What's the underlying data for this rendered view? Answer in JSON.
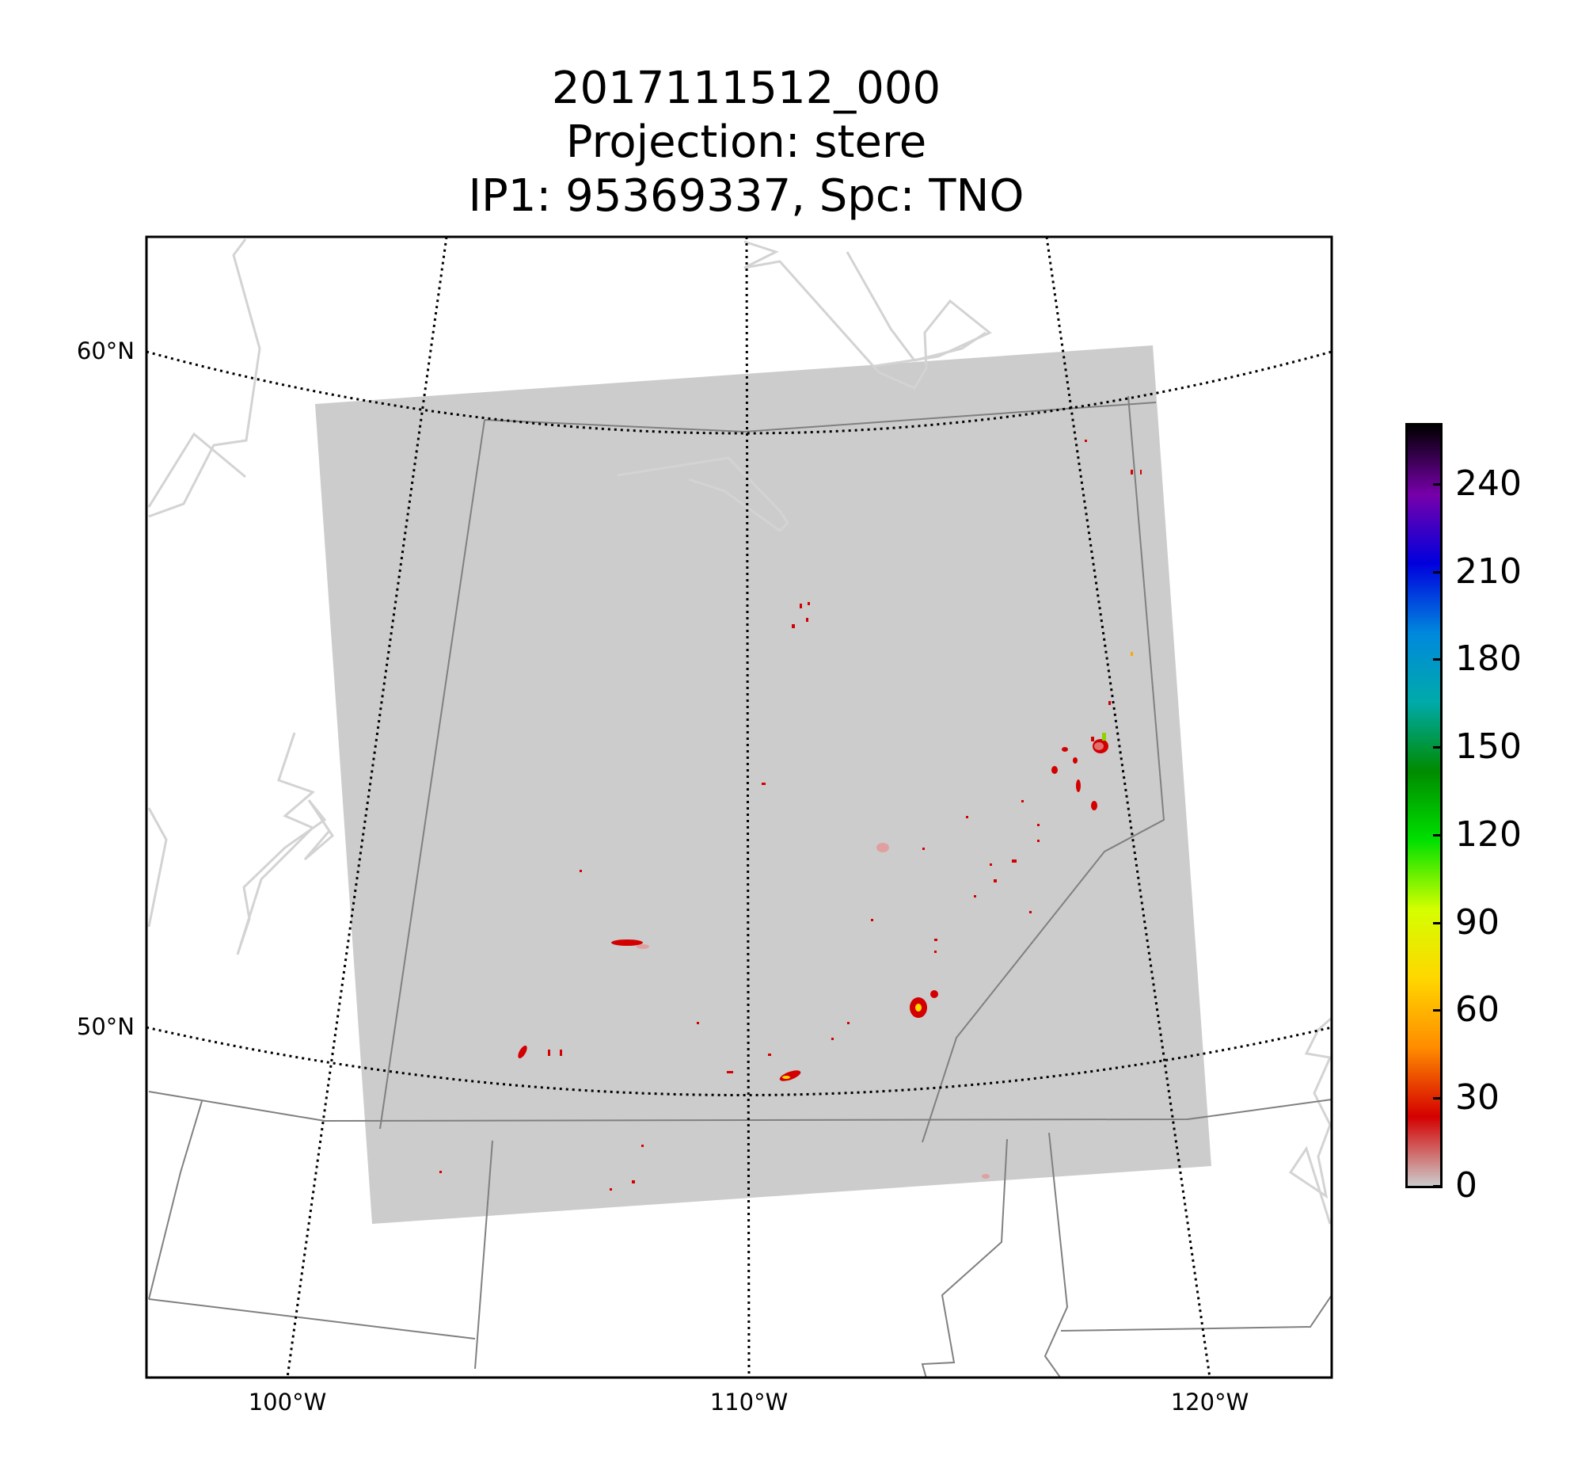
{
  "title": {
    "line1": "2017111512_000",
    "line2": "Projection: stere",
    "line3": "IP1: 95369337, Spc: TNO"
  },
  "map": {
    "lat_labels": [
      "60°N",
      "50°N"
    ],
    "lon_labels": [
      "100°W",
      "110°W",
      "120°W"
    ],
    "field_background_color": "#cccccc",
    "coastline_color": "#d3d3d3",
    "border_color": "#808080",
    "emission_color": "#d40000"
  },
  "colorbar": {
    "ticks": [
      "0",
      "30",
      "60",
      "90",
      "120",
      "150",
      "180",
      "210",
      "240"
    ],
    "range": [
      0,
      260
    ],
    "colormap": [
      "#cccccc",
      "#d40000",
      "#ff8c00",
      "#ffd700",
      "#d4ff00",
      "#00e000",
      "#008b00",
      "#00aaaa",
      "#0088dd",
      "#0000dd",
      "#7700aa",
      "#000000"
    ]
  }
}
